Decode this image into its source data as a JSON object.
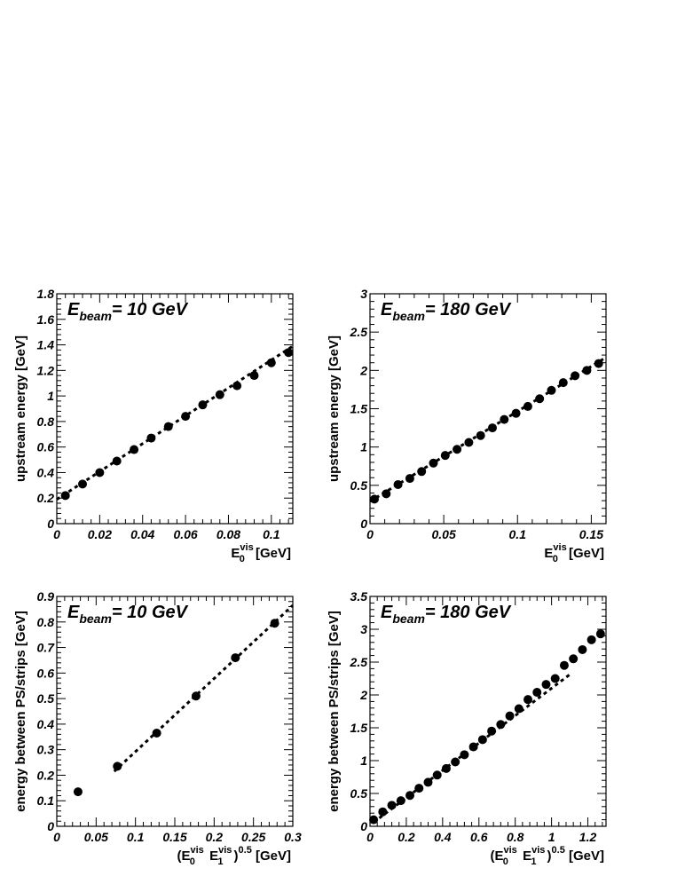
{
  "chart_data": [
    {
      "type": "scatter",
      "ylabel": "upstream energy [GeV]",
      "xlabel_main": "E",
      "xlabel_sub": "0",
      "xlabel_sup": "vis",
      "xlabel_unit": "[GeV]",
      "beam_prefix": "E",
      "beam_sub": "beam",
      "beam_value": "=  10 GeV",
      "xlim": [
        0,
        0.11
      ],
      "ylim": [
        0,
        1.8
      ],
      "xticks": [
        0,
        0.02,
        0.04,
        0.06,
        0.08,
        0.1
      ],
      "xtick_labels": [
        "0",
        "0.02",
        "0.04",
        "0.06",
        "0.08",
        "0.1"
      ],
      "yticks": [
        0,
        0.2,
        0.4,
        0.6,
        0.8,
        1,
        1.2,
        1.4,
        1.6,
        1.8
      ],
      "ytick_labels": [
        "0",
        "0.2",
        "0.4",
        "0.6",
        "0.8",
        "1",
        "1.2",
        "1.4",
        "1.6",
        "1.8"
      ],
      "points": [
        [
          0.004,
          0.22
        ],
        [
          0.012,
          0.31
        ],
        [
          0.02,
          0.4
        ],
        [
          0.028,
          0.49
        ],
        [
          0.036,
          0.58
        ],
        [
          0.044,
          0.67
        ],
        [
          0.052,
          0.76
        ],
        [
          0.06,
          0.84
        ],
        [
          0.068,
          0.93
        ],
        [
          0.076,
          1.01
        ],
        [
          0.084,
          1.08
        ],
        [
          0.092,
          1.16
        ],
        [
          0.1,
          1.26
        ],
        [
          0.108,
          1.34
        ]
      ],
      "fit": [
        [
          0,
          0.19
        ],
        [
          0.11,
          1.39
        ]
      ],
      "grid": false
    },
    {
      "type": "scatter",
      "ylabel": "upstream energy [GeV]",
      "xlabel_main": "E",
      "xlabel_sub": "0",
      "xlabel_sup": "vis",
      "xlabel_unit": "[GeV]",
      "beam_prefix": "E",
      "beam_sub": "beam",
      "beam_value": "= 180 GeV",
      "xlim": [
        0,
        0.16
      ],
      "ylim": [
        0,
        3
      ],
      "xticks": [
        0,
        0.05,
        0.1,
        0.15
      ],
      "xtick_labels": [
        "0",
        "0.05",
        "0.1",
        "0.15"
      ],
      "yticks": [
        0,
        0.5,
        1,
        1.5,
        2,
        2.5,
        3
      ],
      "ytick_labels": [
        "0",
        "0.5",
        "1",
        "1.5",
        "2",
        "2.5",
        "3"
      ],
      "points": [
        [
          0.003,
          0.32
        ],
        [
          0.011,
          0.39
        ],
        [
          0.019,
          0.51
        ],
        [
          0.027,
          0.59
        ],
        [
          0.035,
          0.68
        ],
        [
          0.043,
          0.79
        ],
        [
          0.051,
          0.89
        ],
        [
          0.059,
          0.97
        ],
        [
          0.067,
          1.06
        ],
        [
          0.075,
          1.15
        ],
        [
          0.083,
          1.25
        ],
        [
          0.091,
          1.36
        ],
        [
          0.099,
          1.44
        ],
        [
          0.107,
          1.53
        ],
        [
          0.115,
          1.63
        ],
        [
          0.123,
          1.74
        ],
        [
          0.131,
          1.84
        ],
        [
          0.139,
          1.93
        ],
        [
          0.147,
          2.0
        ],
        [
          0.155,
          2.09
        ]
      ],
      "fit": [
        [
          0,
          0.29
        ],
        [
          0.16,
          2.17
        ]
      ],
      "grid": false
    },
    {
      "type": "scatter",
      "ylabel": "energy  between PS/strips [GeV]",
      "xlabel_main": "(E",
      "xlabel_sub": "0",
      "xlabel_sup": "vis",
      "xlabel_main2": " E",
      "xlabel_sub2": "1",
      "xlabel_sup2": "vis",
      "xlabel_close": ")",
      "xlabel_pow": "0.5",
      "xlabel_unit": "[GeV]",
      "beam_prefix": "E",
      "beam_sub": "beam",
      "beam_value": "=  10 GeV",
      "xlim": [
        0,
        0.3
      ],
      "ylim": [
        0,
        0.9
      ],
      "xticks": [
        0,
        0.05,
        0.1,
        0.15,
        0.2,
        0.25,
        0.3
      ],
      "xtick_labels": [
        "0",
        "0.05",
        "0.1",
        "0.15",
        "0.2",
        "0.25",
        "0.3"
      ],
      "yticks": [
        0,
        0.1,
        0.2,
        0.3,
        0.4,
        0.5,
        0.6,
        0.7,
        0.8,
        0.9
      ],
      "ytick_labels": [
        "0",
        "0.1",
        "0.2",
        "0.3",
        "0.4",
        "0.5",
        "0.6",
        "0.7",
        "0.8",
        "0.9"
      ],
      "points": [
        [
          0.027,
          0.135
        ],
        [
          0.077,
          0.235
        ],
        [
          0.127,
          0.365
        ],
        [
          0.177,
          0.51
        ],
        [
          0.227,
          0.66
        ],
        [
          0.277,
          0.795
        ]
      ],
      "fit": [
        [
          0.073,
          0.215
        ],
        [
          0.3,
          0.865
        ]
      ],
      "grid": false
    },
    {
      "type": "scatter",
      "ylabel": "energy between PS/strips [GeV]",
      "xlabel_main": "(E",
      "xlabel_sub": "0",
      "xlabel_sup": "vis",
      "xlabel_main2": " E",
      "xlabel_sub2": "1",
      "xlabel_sup2": "vis",
      "xlabel_close": ")",
      "xlabel_pow": "0.5",
      "xlabel_unit": "[GeV]",
      "beam_prefix": "E",
      "beam_sub": "beam",
      "beam_value": "= 180 GeV",
      "xlim": [
        0,
        1.3
      ],
      "ylim": [
        0,
        3.5
      ],
      "xticks": [
        0,
        0.2,
        0.4,
        0.6,
        0.8,
        1,
        1.2
      ],
      "xtick_labels": [
        "0",
        "0.2",
        "0.4",
        "0.6",
        "0.8",
        "1",
        "1.2"
      ],
      "yticks": [
        0,
        0.5,
        1,
        1.5,
        2,
        2.5,
        3,
        3.5
      ],
      "ytick_labels": [
        "0",
        "0.5",
        "1",
        "1.5",
        "2",
        "2.5",
        "3",
        "3.5"
      ],
      "points": [
        [
          0.02,
          0.1
        ],
        [
          0.07,
          0.22
        ],
        [
          0.12,
          0.32
        ],
        [
          0.17,
          0.39
        ],
        [
          0.22,
          0.47
        ],
        [
          0.27,
          0.58
        ],
        [
          0.32,
          0.67
        ],
        [
          0.37,
          0.78
        ],
        [
          0.42,
          0.88
        ],
        [
          0.47,
          0.98
        ],
        [
          0.52,
          1.09
        ],
        [
          0.57,
          1.21
        ],
        [
          0.62,
          1.32
        ],
        [
          0.67,
          1.45
        ],
        [
          0.72,
          1.55
        ],
        [
          0.77,
          1.68
        ],
        [
          0.82,
          1.79
        ],
        [
          0.87,
          1.93
        ],
        [
          0.92,
          2.04
        ],
        [
          0.97,
          2.16
        ],
        [
          1.02,
          2.25
        ],
        [
          1.07,
          2.45
        ],
        [
          1.12,
          2.55
        ],
        [
          1.17,
          2.69
        ],
        [
          1.22,
          2.84
        ],
        [
          1.27,
          2.93
        ]
      ],
      "fit": [
        [
          0.02,
          0.06
        ],
        [
          1.1,
          2.31
        ]
      ],
      "grid": false
    }
  ]
}
